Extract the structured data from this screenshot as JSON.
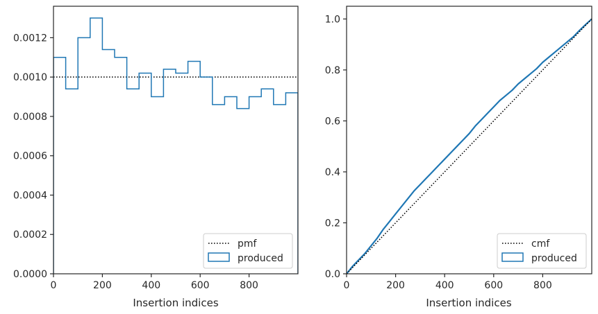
{
  "colors": {
    "produced": "#1f77b4",
    "reference": "#000000",
    "axes": "#262626",
    "legend_border": "#cccccc"
  },
  "chart_data": [
    {
      "type": "step",
      "xlabel": "Insertion indices",
      "ylabel": "",
      "xlim": [
        0,
        1000
      ],
      "ylim": [
        0,
        0.00136
      ],
      "x_ticks": [
        "0",
        "200",
        "400",
        "600",
        "800"
      ],
      "y_ticks": [
        "0.0000",
        "0.0002",
        "0.0004",
        "0.0006",
        "0.0008",
        "0.0010",
        "0.0012"
      ],
      "legend": {
        "placement": "lower-right",
        "entries": [
          "pmf",
          "produced"
        ]
      },
      "reference_line": {
        "name": "pmf",
        "value": 0.001,
        "style": "dotted"
      },
      "bin_edges": [
        0,
        50,
        100,
        150,
        200,
        250,
        300,
        350,
        400,
        450,
        500,
        550,
        600,
        650,
        700,
        750,
        800,
        850,
        900,
        950,
        1000
      ],
      "series": [
        {
          "name": "produced",
          "values": [
            0.0011,
            0.00094,
            0.0012,
            0.0013,
            0.00114,
            0.0011,
            0.00094,
            0.00102,
            0.0009,
            0.00104,
            0.00102,
            0.00108,
            0.001,
            0.00086,
            0.0009,
            0.00084,
            0.0009,
            0.00094,
            0.00086,
            0.00092
          ]
        }
      ]
    },
    {
      "type": "line",
      "xlabel": "Insertion indices",
      "ylabel": "",
      "xlim": [
        0,
        1000
      ],
      "ylim": [
        0,
        1.05
      ],
      "x_ticks": [
        "0",
        "200",
        "400",
        "600",
        "800"
      ],
      "y_ticks": [
        "0.0",
        "0.2",
        "0.4",
        "0.6",
        "0.8",
        "1.0"
      ],
      "legend": {
        "placement": "lower-right",
        "entries": [
          "cmf",
          "produced"
        ]
      },
      "reference_line": {
        "name": "cmf",
        "from": [
          0,
          0
        ],
        "to": [
          1000,
          1.0
        ],
        "style": "dotted"
      },
      "series": [
        {
          "name": "produced",
          "x": [
            0,
            25,
            50,
            75,
            100,
            125,
            150,
            175,
            200,
            225,
            250,
            275,
            300,
            325,
            350,
            375,
            400,
            425,
            450,
            475,
            500,
            525,
            550,
            575,
            600,
            625,
            650,
            675,
            700,
            725,
            750,
            775,
            800,
            825,
            850,
            875,
            900,
            925,
            950,
            975,
            1000
          ],
          "y": [
            0,
            0.03,
            0.055,
            0.08,
            0.11,
            0.14,
            0.175,
            0.205,
            0.235,
            0.265,
            0.295,
            0.325,
            0.35,
            0.375,
            0.4,
            0.425,
            0.45,
            0.475,
            0.5,
            0.525,
            0.55,
            0.58,
            0.605,
            0.63,
            0.655,
            0.68,
            0.7,
            0.72,
            0.745,
            0.765,
            0.785,
            0.805,
            0.83,
            0.85,
            0.87,
            0.89,
            0.91,
            0.93,
            0.955,
            0.978,
            1.0
          ]
        }
      ]
    }
  ]
}
